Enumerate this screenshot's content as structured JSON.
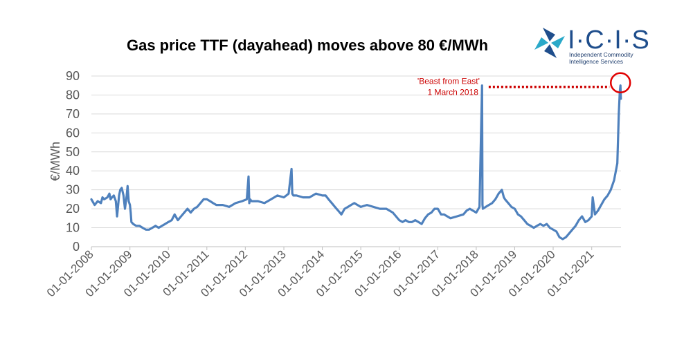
{
  "logo": {
    "name": "I·C·I·S",
    "subtitle_line1": "Independent Commodity",
    "subtitle_line2": "Intelligence Services",
    "colors": {
      "blue": "#1f4e8c",
      "teal": "#2aa9c9"
    }
  },
  "chart_data": {
    "type": "line",
    "title": "Gas price TTF (dayahead) moves above 80 €/MWh",
    "xlabel": "",
    "ylabel": "€/MWh",
    "ylim": [
      0,
      90
    ],
    "yticks": [
      0,
      10,
      20,
      30,
      40,
      50,
      60,
      70,
      80,
      90
    ],
    "xlim": [
      "2008-01-01",
      "2021-10-06"
    ],
    "xticks": [
      "01-01-2008",
      "01-01-2009",
      "01-01-2010",
      "01-01-2011",
      "01-01-2012",
      "01-01-2013",
      "01-01-2014",
      "01-01-2015",
      "01-01-2016",
      "01-01-2017",
      "01-01-2018",
      "01-01-2019",
      "01-01-2020",
      "01-01-2021"
    ],
    "grid": true,
    "line_color": "#4f81bd",
    "series": [
      {
        "name": "",
        "x": [
          "2008-01-01",
          "2008-02-01",
          "2008-03-01",
          "2008-04-01",
          "2008-04-15",
          "2008-05-01",
          "2008-06-01",
          "2008-06-20",
          "2008-07-01",
          "2008-07-15",
          "2008-08-01",
          "2008-08-20",
          "2008-09-01",
          "2008-09-20",
          "2008-10-01",
          "2008-10-15",
          "2008-11-01",
          "2008-11-15",
          "2008-12-01",
          "2008-12-10",
          "2008-12-20",
          "2009-01-01",
          "2009-01-08",
          "2009-01-15",
          "2009-02-01",
          "2009-03-01",
          "2009-04-01",
          "2009-05-01",
          "2009-06-01",
          "2009-07-01",
          "2009-08-01",
          "2009-09-01",
          "2009-10-01",
          "2009-11-01",
          "2009-12-01",
          "2010-01-01",
          "2010-02-01",
          "2010-03-01",
          "2010-04-01",
          "2010-05-01",
          "2010-06-01",
          "2010-07-01",
          "2010-08-01",
          "2010-09-01",
          "2010-10-01",
          "2010-11-01",
          "2010-12-01",
          "2011-01-01",
          "2011-02-01",
          "2011-03-01",
          "2011-04-01",
          "2011-06-01",
          "2011-08-01",
          "2011-10-01",
          "2011-12-01",
          "2012-01-15",
          "2012-02-01",
          "2012-02-08",
          "2012-02-15",
          "2012-03-01",
          "2012-05-01",
          "2012-07-01",
          "2012-09-01",
          "2012-11-01",
          "2013-01-01",
          "2013-02-15",
          "2013-03-15",
          "2013-03-22",
          "2013-04-01",
          "2013-05-01",
          "2013-07-01",
          "2013-09-01",
          "2013-11-01",
          "2014-01-01",
          "2014-02-01",
          "2014-03-01",
          "2014-04-01",
          "2014-05-01",
          "2014-06-01",
          "2014-07-01",
          "2014-08-01",
          "2014-09-01",
          "2014-10-01",
          "2014-11-01",
          "2014-12-01",
          "2015-01-01",
          "2015-03-01",
          "2015-05-01",
          "2015-07-01",
          "2015-09-01",
          "2015-11-01",
          "2016-01-01",
          "2016-02-01",
          "2016-03-01",
          "2016-04-01",
          "2016-05-01",
          "2016-06-01",
          "2016-07-01",
          "2016-08-01",
          "2016-09-01",
          "2016-10-01",
          "2016-11-01",
          "2016-12-01",
          "2017-01-01",
          "2017-02-01",
          "2017-03-01",
          "2017-04-01",
          "2017-05-01",
          "2017-07-01",
          "2017-09-01",
          "2017-10-01",
          "2017-11-01",
          "2017-12-01",
          "2018-01-01",
          "2018-02-01",
          "2018-02-25",
          "2018-03-01",
          "2018-03-05",
          "2018-04-01",
          "2018-05-01",
          "2018-06-01",
          "2018-07-01",
          "2018-08-01",
          "2018-09-01",
          "2018-09-20",
          "2018-10-01",
          "2018-11-01",
          "2018-12-01",
          "2019-01-01",
          "2019-02-01",
          "2019-03-01",
          "2019-04-01",
          "2019-05-01",
          "2019-06-01",
          "2019-07-01",
          "2019-08-01",
          "2019-09-01",
          "2019-10-01",
          "2019-11-01",
          "2019-12-01",
          "2020-01-01",
          "2020-02-01",
          "2020-03-01",
          "2020-04-01",
          "2020-05-01",
          "2020-06-01",
          "2020-07-01",
          "2020-08-01",
          "2020-09-01",
          "2020-10-01",
          "2020-11-01",
          "2020-12-01",
          "2021-01-01",
          "2021-01-10",
          "2021-02-01",
          "2021-03-01",
          "2021-04-01",
          "2021-05-01",
          "2021-06-01",
          "2021-07-01",
          "2021-08-01",
          "2021-09-01",
          "2021-09-15",
          "2021-09-25",
          "2021-10-01",
          "2021-10-05"
        ],
        "values": [
          25,
          22,
          24,
          23,
          26,
          25,
          26,
          28,
          25,
          26,
          27,
          24,
          16,
          27,
          30,
          31,
          27,
          20,
          27,
          32,
          24,
          22,
          18,
          13,
          12,
          11,
          11,
          10,
          9,
          9,
          10,
          11,
          10,
          11,
          12,
          13,
          14,
          17,
          14,
          16,
          18,
          20,
          18,
          20,
          21,
          23,
          25,
          25,
          24,
          23,
          22,
          22,
          21,
          23,
          24,
          25,
          37,
          23,
          25,
          24,
          24,
          23,
          25,
          27,
          26,
          28,
          41,
          28,
          27,
          27,
          26,
          26,
          28,
          27,
          27,
          25,
          23,
          21,
          19,
          17,
          20,
          21,
          22,
          23,
          22,
          21,
          22,
          21,
          20,
          20,
          18,
          14,
          13,
          14,
          13,
          13,
          14,
          13,
          12,
          15,
          17,
          18,
          20,
          20,
          17,
          17,
          16,
          15,
          16,
          17,
          19,
          20,
          19,
          18,
          21,
          85,
          22,
          20,
          21,
          22,
          23,
          25,
          28,
          30,
          26,
          25,
          23,
          21,
          20,
          17,
          16,
          14,
          12,
          11,
          10,
          11,
          12,
          11,
          12,
          10,
          9,
          8,
          5,
          4,
          5,
          7,
          9,
          11,
          14,
          16,
          13,
          14,
          16,
          26,
          17,
          19,
          22,
          25,
          27,
          30,
          35,
          44,
          70,
          82,
          85,
          78
        ]
      }
    ],
    "annotations": [
      {
        "text_line1": "'Beast from East'",
        "text_line2": "1 March 2018",
        "x": "2018-03-01",
        "y": 85,
        "color": "#cc0000"
      }
    ],
    "highlight": {
      "x": "2021-10-01",
      "y": 85,
      "color": "#e00000"
    }
  }
}
